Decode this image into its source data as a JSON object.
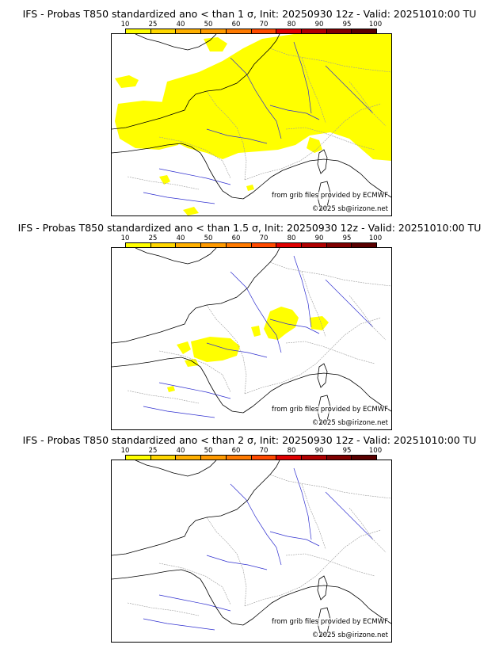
{
  "legend": {
    "ticks": [
      "10",
      "25",
      "40",
      "50",
      "60",
      "70",
      "80",
      "90",
      "95",
      "100"
    ],
    "colors": [
      "#ffff00",
      "#ffd700",
      "#ffb000",
      "#ff9a00",
      "#ff7a00",
      "#ff4a00",
      "#e00000",
      "#b00000",
      "#800000",
      "#5a0000"
    ]
  },
  "panels": [
    {
      "title": "IFS - Probas T850  standardized ano < than 1 σ, Init: 20250930 12z - Valid: 20251010:00 TU",
      "credit_source": "from grib files provided by ECMWF",
      "credit_copyright": "©2025 sb@irizone.net",
      "coverage": "wide"
    },
    {
      "title": "IFS - Probas T850  standardized ano < than 1.5 σ, Init: 20250930 12z - Valid: 20251010:00 TU",
      "credit_source": "from grib files provided by ECMWF",
      "credit_copyright": "©2025 sb@irizone.net",
      "coverage": "patchy"
    },
    {
      "title": "IFS - Probas T850  standardized ano < than 2 σ, Init: 20250930 12z - Valid: 20251010:00 TU",
      "credit_source": "from grib files provided by ECMWF",
      "credit_copyright": "©2025 sb@irizone.net",
      "coverage": "none"
    }
  ]
}
